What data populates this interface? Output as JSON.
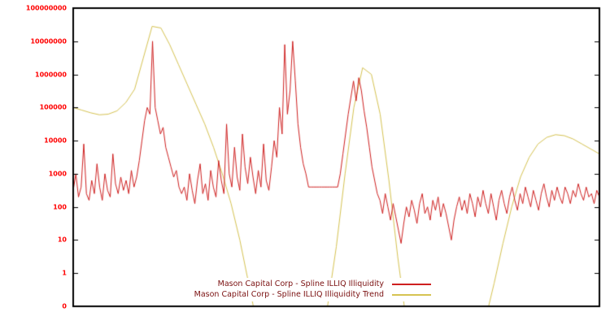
{
  "page": {
    "background": "#ffffff"
  },
  "chart_data": {
    "type": "line",
    "title": "",
    "xlabel": "",
    "ylabel": "",
    "x_axis": {
      "tick_labels": []
    },
    "y_axis": {
      "scale": "log10",
      "label_color": "#ff0000",
      "ticks": [
        {
          "label": "100000000",
          "log": 8
        },
        {
          "label": "10000000",
          "log": 7
        },
        {
          "label": "1000000",
          "log": 6
        },
        {
          "label": "100000",
          "log": 5
        },
        {
          "label": "10000",
          "log": 4
        },
        {
          "label": "1000",
          "log": 3
        },
        {
          "label": "100",
          "log": 2
        },
        {
          "label": "10",
          "log": 1
        },
        {
          "label": "1",
          "log": 0
        },
        {
          "label": "0",
          "log": -1
        }
      ],
      "range_log": [
        -1,
        8
      ]
    },
    "grid": false,
    "legend": {
      "position": "bottom-inside",
      "text_color": "#7a1010"
    },
    "series": [
      {
        "name": "Mason Capital Corp - Spline ILLIQ Illiquidity",
        "color": "#cf2020",
        "width": 1,
        "y_scale": "log10",
        "values": [
          2.5,
          3.0,
          2.3,
          2.6,
          3.9,
          2.4,
          2.2,
          2.8,
          2.4,
          3.3,
          2.6,
          2.2,
          3.0,
          2.5,
          2.3,
          3.6,
          2.7,
          2.4,
          2.9,
          2.5,
          2.8,
          2.4,
          3.1,
          2.6,
          2.9,
          3.4,
          4.0,
          4.6,
          5.0,
          4.8,
          7.0,
          5.0,
          4.6,
          4.2,
          4.4,
          3.8,
          3.5,
          3.2,
          2.9,
          3.1,
          2.6,
          2.4,
          2.6,
          2.2,
          3.0,
          2.5,
          2.1,
          2.8,
          3.3,
          2.4,
          2.7,
          2.2,
          3.1,
          2.6,
          2.3,
          3.4,
          2.8,
          2.4,
          4.5,
          3.0,
          2.6,
          3.8,
          2.9,
          2.5,
          4.2,
          3.2,
          2.7,
          3.5,
          2.9,
          2.4,
          3.1,
          2.6,
          3.9,
          2.8,
          2.5,
          3.2,
          4.0,
          3.5,
          5.0,
          4.2,
          6.9,
          4.8,
          5.5,
          7.0,
          5.8,
          4.5,
          3.8,
          3.3,
          3.0,
          2.6,
          2.6,
          2.6,
          2.6,
          2.6,
          2.6,
          2.6,
          2.6,
          2.6,
          2.6,
          2.6,
          2.6,
          3.0,
          3.6,
          4.2,
          4.8,
          5.3,
          5.8,
          5.2,
          5.9,
          5.5,
          4.9,
          4.4,
          3.8,
          3.2,
          2.8,
          2.4,
          2.2,
          1.8,
          2.4,
          2.0,
          1.6,
          2.1,
          1.7,
          1.3,
          0.9,
          1.5,
          2.0,
          1.7,
          2.2,
          1.9,
          1.5,
          2.1,
          2.4,
          1.8,
          2.0,
          1.6,
          2.2,
          1.9,
          2.3,
          1.7,
          2.1,
          1.8,
          1.4,
          1.0,
          1.6,
          2.0,
          2.3,
          1.9,
          2.2,
          1.8,
          2.4,
          2.1,
          1.7,
          2.3,
          2.0,
          2.5,
          2.1,
          1.8,
          2.4,
          2.0,
          1.6,
          2.2,
          2.5,
          2.1,
          1.8,
          2.3,
          2.6,
          2.2,
          1.9,
          2.4,
          2.1,
          2.6,
          2.3,
          2.0,
          2.5,
          2.2,
          1.9,
          2.4,
          2.7,
          2.3,
          2.0,
          2.5,
          2.2,
          2.6,
          2.3,
          2.1,
          2.6,
          2.4,
          2.1,
          2.5,
          2.3,
          2.7,
          2.4,
          2.2,
          2.6,
          2.3,
          2.4,
          2.1,
          2.5,
          2.3
        ]
      },
      {
        "name": "Mason Capital Corp - Spline ILLIQ Illiquidity Trend",
        "color": "#d6c352",
        "width": 1,
        "y_scale": "log10",
        "values": [
          5.0,
          4.92,
          4.84,
          4.78,
          4.8,
          4.9,
          5.15,
          5.55,
          6.5,
          7.45,
          7.4,
          6.9,
          6.3,
          5.7,
          5.1,
          4.5,
          3.8,
          3.0,
          2.1,
          1.0,
          -0.3,
          -1.6,
          -2.7,
          -3.5,
          -4.0,
          -4.2,
          -4.0,
          -3.4,
          -2.4,
          -1.0,
          0.8,
          3.0,
          5.0,
          6.2,
          6.0,
          4.8,
          2.8,
          0.5,
          -1.5,
          -2.8,
          -3.7,
          -4.2,
          -4.4,
          -4.2,
          -3.8,
          -3.2,
          -2.4,
          -1.4,
          -0.3,
          0.9,
          2.0,
          2.9,
          3.5,
          3.9,
          4.1,
          4.18,
          4.15,
          4.05,
          3.9,
          3.75,
          3.6
        ]
      }
    ]
  }
}
